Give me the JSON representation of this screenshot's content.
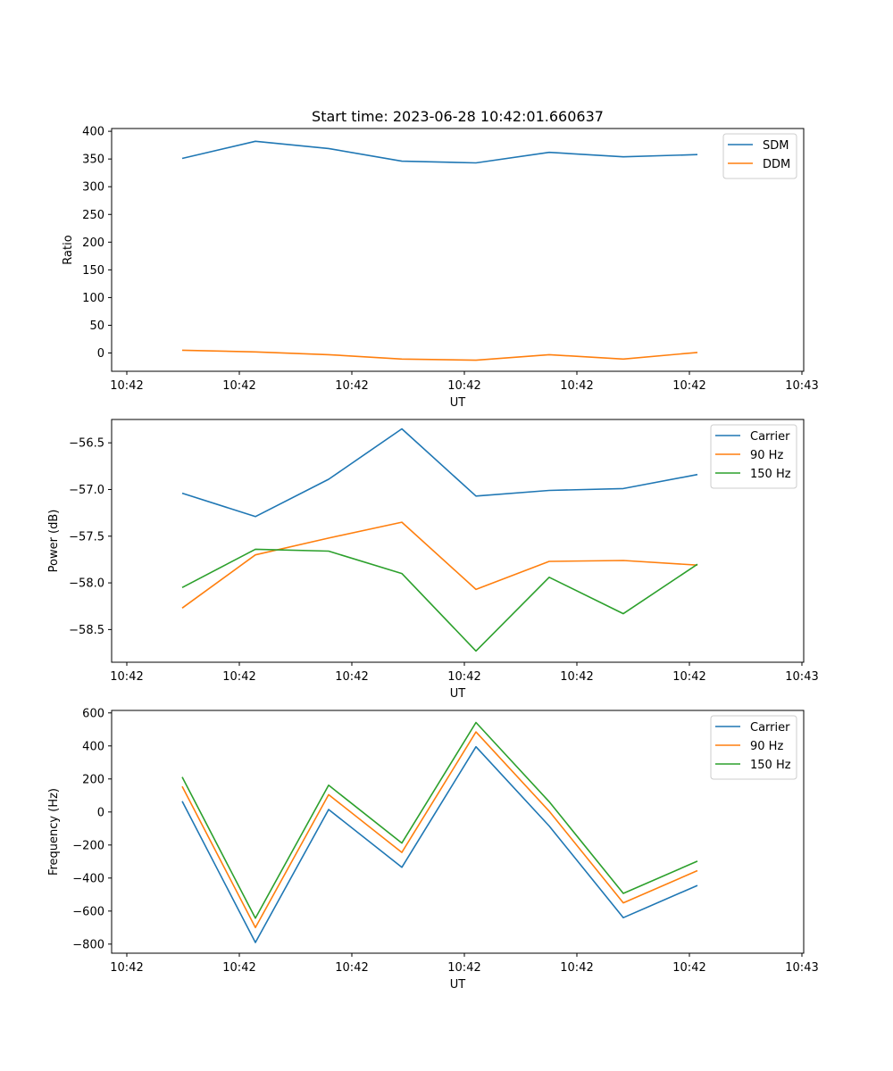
{
  "chart_data": [
    {
      "type": "line",
      "title": "Start time: 2023-06-28 10:42:01.660637",
      "xlabel": "UT",
      "ylabel": "Ratio",
      "xticks": [
        "10:42",
        "10:42",
        "10:42",
        "10:42",
        "10:42",
        "10:42",
        "10:42",
        "10:43"
      ],
      "ylim": [
        -33,
        405
      ],
      "yticks": [
        0,
        50,
        100,
        150,
        200,
        250,
        300,
        350,
        400
      ],
      "legend": "top-right",
      "series": [
        {
          "name": "SDM",
          "color": "#1f77b4",
          "values": [
            351,
            382,
            369,
            346,
            343,
            362,
            354,
            358
          ]
        },
        {
          "name": "DDM",
          "color": "#ff7f0e",
          "values": [
            5,
            2,
            -3,
            -11,
            -13,
            -3,
            -11,
            1
          ]
        }
      ]
    },
    {
      "type": "line",
      "title": "",
      "xlabel": "UT",
      "ylabel": "Power (dB)",
      "xticks": [
        "10:42",
        "10:42",
        "10:42",
        "10:42",
        "10:42",
        "10:42",
        "10:42",
        "10:43"
      ],
      "ylim": [
        -58.85,
        -56.25
      ],
      "yticks": [
        -58.5,
        -58.0,
        -57.5,
        -57.0,
        -56.5
      ],
      "ytick_labels": [
        "−58.5",
        "−58.0",
        "−57.5",
        "−57.0",
        "−56.5"
      ],
      "legend": "top-right",
      "series": [
        {
          "name": "Carrier",
          "color": "#1f77b4",
          "values": [
            -57.04,
            -57.29,
            -56.89,
            -56.35,
            -57.07,
            -57.01,
            -56.99,
            -56.84
          ]
        },
        {
          "name": "90 Hz",
          "color": "#ff7f0e",
          "values": [
            -58.27,
            -57.7,
            -57.52,
            -57.35,
            -58.07,
            -57.77,
            -57.76,
            -57.81
          ]
        },
        {
          "name": "150 Hz",
          "color": "#2ca02c",
          "values": [
            -58.05,
            -57.64,
            -57.66,
            -57.9,
            -58.73,
            -57.94,
            -58.33,
            -57.8
          ]
        }
      ]
    },
    {
      "type": "line",
      "title": "",
      "xlabel": "UT",
      "ylabel": "Frequency (Hz)",
      "xticks": [
        "10:42",
        "10:42",
        "10:42",
        "10:42",
        "10:42",
        "10:42",
        "10:42",
        "10:43"
      ],
      "ylim": [
        -855,
        615
      ],
      "yticks": [
        -800,
        -600,
        -400,
        -200,
        0,
        200,
        400,
        600
      ],
      "ytick_labels": [
        "−800",
        "−600",
        "−400",
        "−200",
        "0",
        "200",
        "400",
        "600"
      ],
      "legend": "top-right",
      "series": [
        {
          "name": "Carrier",
          "color": "#1f77b4",
          "values": [
            65,
            -790,
            15,
            -335,
            395,
            -85,
            -640,
            -445
          ]
        },
        {
          "name": "90 Hz",
          "color": "#ff7f0e",
          "values": [
            155,
            -700,
            105,
            -245,
            485,
            5,
            -550,
            -355
          ]
        },
        {
          "name": "150 Hz",
          "color": "#2ca02c",
          "values": [
            212,
            -643,
            162,
            -188,
            542,
            62,
            -493,
            -298
          ]
        }
      ]
    }
  ]
}
